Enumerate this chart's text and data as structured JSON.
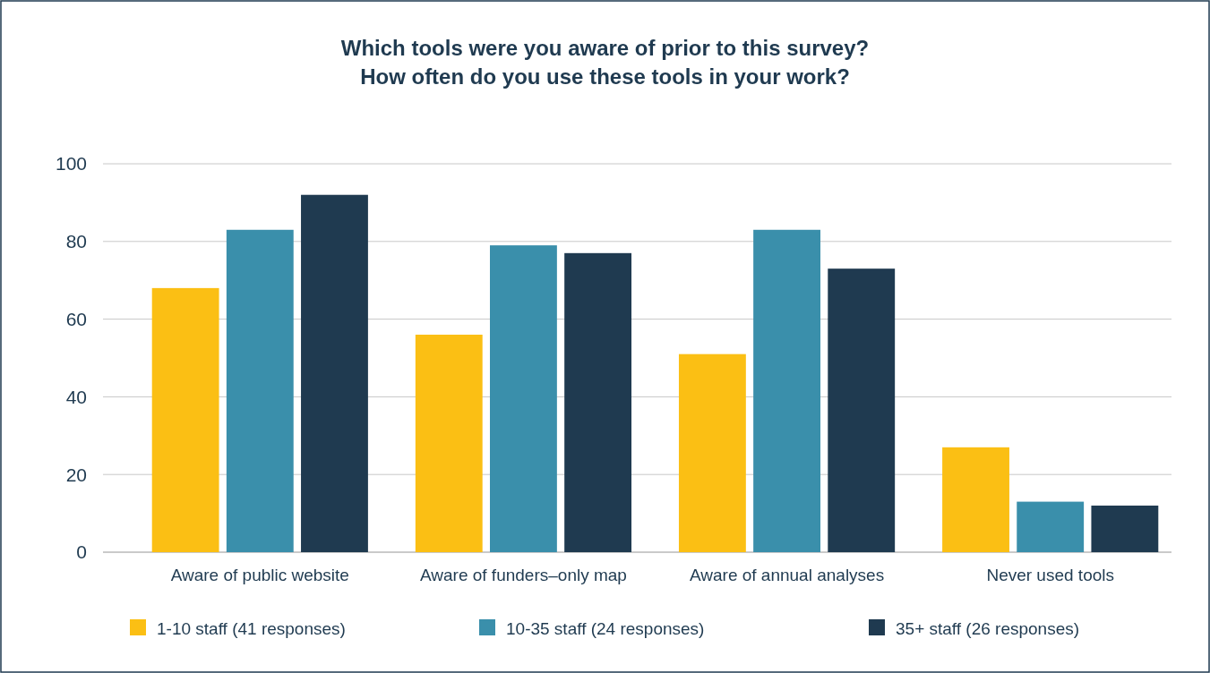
{
  "chart_data": {
    "type": "bar",
    "title": "Which tools were you aware of prior to this survey?\nHow often do you use these tools in your work?",
    "categories": [
      "Aware of public website",
      "Aware of funders–only map",
      "Aware of annual analyses",
      "Never used tools"
    ],
    "series": [
      {
        "name": "1-10 staff (41 responses)",
        "color": "#fbbf14",
        "values": [
          68,
          56,
          51,
          27
        ]
      },
      {
        "name": "10-35 staff (24 responses)",
        "color": "#3a8fab",
        "values": [
          83,
          79,
          83,
          13
        ]
      },
      {
        "name": "35+ staff (26 responses)",
        "color": "#1f3a50",
        "values": [
          92,
          77,
          73,
          12
        ]
      }
    ],
    "ylim": [
      0,
      100
    ],
    "yticks": [
      0,
      20,
      40,
      60,
      80,
      100
    ],
    "grid": "y",
    "legend": "bottom"
  }
}
